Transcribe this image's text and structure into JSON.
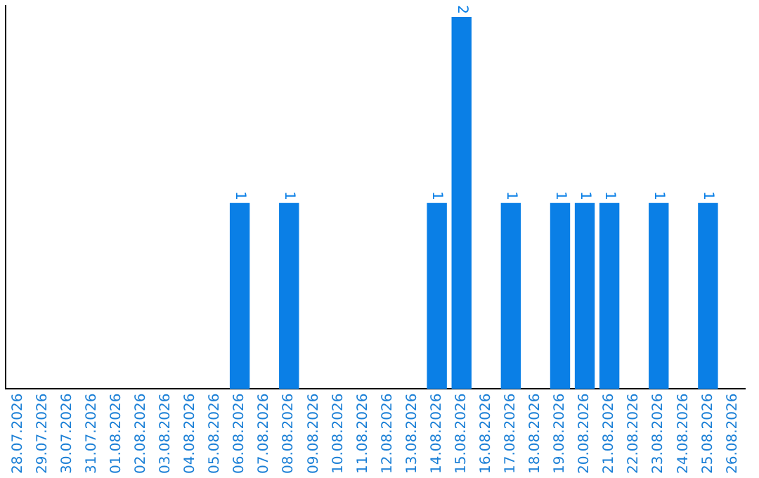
{
  "chart_data": {
    "type": "bar",
    "categories": [
      "28.07.2026",
      "29.07.2026",
      "30.07.2026",
      "31.07.2026",
      "01.08.2026",
      "02.08.2026",
      "03.08.2026",
      "04.08.2026",
      "05.08.2026",
      "06.08.2026",
      "07.08.2026",
      "08.08.2026",
      "09.08.2026",
      "10.08.2026",
      "11.08.2026",
      "12.08.2026",
      "13.08.2026",
      "14.08.2026",
      "15.08.2026",
      "16.08.2026",
      "17.08.2026",
      "18.08.2026",
      "19.08.2026",
      "20.08.2026",
      "21.08.2026",
      "22.08.2026",
      "23.08.2026",
      "24.08.2026",
      "25.08.2026",
      "26.08.2026"
    ],
    "values": [
      0,
      0,
      0,
      0,
      0,
      0,
      0,
      0,
      0,
      1,
      0,
      1,
      0,
      0,
      0,
      0,
      0,
      1,
      2,
      0,
      1,
      0,
      1,
      1,
      1,
      0,
      1,
      0,
      1,
      0
    ],
    "value_labels": [
      null,
      null,
      null,
      null,
      null,
      null,
      null,
      null,
      null,
      "1",
      null,
      "1",
      null,
      null,
      null,
      null,
      null,
      "1",
      "2",
      null,
      "1",
      null,
      "1",
      "1",
      "1",
      null,
      "1",
      null,
      "1",
      null
    ],
    "color": "#0a7fe6",
    "ylim": [
      0,
      2.06
    ],
    "tick_labels": "x",
    "grid": false,
    "legend": false
  }
}
